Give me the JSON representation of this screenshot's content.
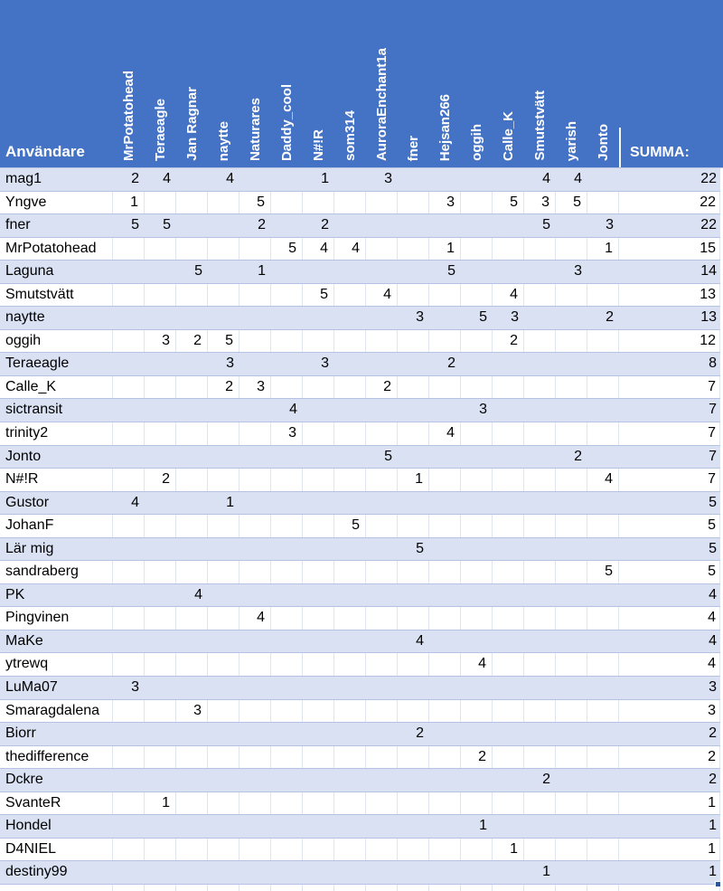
{
  "table": {
    "corner_label": "Användare",
    "summa_label": "SUMMA:",
    "columns": [
      "MrPotatohead",
      "Teraeagle",
      "Jan Ragnar",
      "naytte",
      "Naturares",
      "Daddy_cool",
      "N#!R",
      "som314",
      "AuroraEnchant1a",
      "fner",
      "Hejsan266",
      "oggih",
      "Calle_K",
      "Smutstvätt",
      "yarish",
      "Jonto"
    ],
    "rows": [
      {
        "user": "mag1",
        "cells": [
          "2",
          "4",
          "",
          "4",
          "",
          "",
          "1",
          "",
          "3",
          "",
          "",
          "",
          "",
          "4",
          "4",
          ""
        ],
        "summa": "22"
      },
      {
        "user": "Yngve",
        "cells": [
          "1",
          "",
          "",
          "",
          "5",
          "",
          "",
          "",
          "",
          "",
          "3",
          "",
          "5",
          "3",
          "5",
          ""
        ],
        "summa": "22"
      },
      {
        "user": "fner",
        "cells": [
          "5",
          "5",
          "",
          "",
          "2",
          "",
          "2",
          "",
          "",
          "",
          "",
          "",
          "",
          "5",
          "",
          "3"
        ],
        "summa": "22"
      },
      {
        "user": "MrPotatohead",
        "cells": [
          "",
          "",
          "",
          "",
          "",
          "5",
          "4",
          "4",
          "",
          "",
          "1",
          "",
          "",
          "",
          "",
          "1"
        ],
        "summa": "15"
      },
      {
        "user": "Laguna",
        "cells": [
          "",
          "",
          "5",
          "",
          "1",
          "",
          "",
          "",
          "",
          "",
          "5",
          "",
          "",
          "",
          "3",
          ""
        ],
        "summa": "14"
      },
      {
        "user": "Smutstvätt",
        "cells": [
          "",
          "",
          "",
          "",
          "",
          "",
          "5",
          "",
          "4",
          "",
          "",
          "",
          "4",
          "",
          "",
          ""
        ],
        "summa": "13"
      },
      {
        "user": "naytte",
        "cells": [
          "",
          "",
          "",
          "",
          "",
          "",
          "",
          "",
          "",
          "3",
          "",
          "5",
          "3",
          "",
          "",
          "2"
        ],
        "summa": "13"
      },
      {
        "user": "oggih",
        "cells": [
          "",
          "3",
          "2",
          "5",
          "",
          "",
          "",
          "",
          "",
          "",
          "",
          "",
          "2",
          "",
          "",
          ""
        ],
        "summa": "12"
      },
      {
        "user": "Teraeagle",
        "cells": [
          "",
          "",
          "",
          "3",
          "",
          "",
          "3",
          "",
          "",
          "",
          "2",
          "",
          "",
          "",
          "",
          ""
        ],
        "summa": "8"
      },
      {
        "user": "Calle_K",
        "cells": [
          "",
          "",
          "",
          "2",
          "3",
          "",
          "",
          "",
          "2",
          "",
          "",
          "",
          "",
          "",
          "",
          ""
        ],
        "summa": "7"
      },
      {
        "user": "sictransit",
        "cells": [
          "",
          "",
          "",
          "",
          "",
          "4",
          "",
          "",
          "",
          "",
          "",
          "3",
          "",
          "",
          "",
          ""
        ],
        "summa": "7"
      },
      {
        "user": "trinity2",
        "cells": [
          "",
          "",
          "",
          "",
          "",
          "3",
          "",
          "",
          "",
          "",
          "4",
          "",
          "",
          "",
          "",
          ""
        ],
        "summa": "7"
      },
      {
        "user": "Jonto",
        "cells": [
          "",
          "",
          "",
          "",
          "",
          "",
          "",
          "",
          "5",
          "",
          "",
          "",
          "",
          "",
          "2",
          ""
        ],
        "summa": "7"
      },
      {
        "user": "N#!R",
        "cells": [
          "",
          "2",
          "",
          "",
          "",
          "",
          "",
          "",
          "",
          "1",
          "",
          "",
          "",
          "",
          "",
          "4"
        ],
        "summa": "7"
      },
      {
        "user": "Gustor",
        "cells": [
          "4",
          "",
          "",
          "1",
          "",
          "",
          "",
          "",
          "",
          "",
          "",
          "",
          "",
          "",
          "",
          ""
        ],
        "summa": "5"
      },
      {
        "user": "JohanF",
        "cells": [
          "",
          "",
          "",
          "",
          "",
          "",
          "",
          "5",
          "",
          "",
          "",
          "",
          "",
          "",
          "",
          ""
        ],
        "summa": "5"
      },
      {
        "user": "Lär mig",
        "cells": [
          "",
          "",
          "",
          "",
          "",
          "",
          "",
          "",
          "",
          "5",
          "",
          "",
          "",
          "",
          "",
          ""
        ],
        "summa": "5"
      },
      {
        "user": "sandraberg",
        "cells": [
          "",
          "",
          "",
          "",
          "",
          "",
          "",
          "",
          "",
          "",
          "",
          "",
          "",
          "",
          "",
          "5"
        ],
        "summa": "5"
      },
      {
        "user": "PK",
        "cells": [
          "",
          "",
          "4",
          "",
          "",
          "",
          "",
          "",
          "",
          "",
          "",
          "",
          "",
          "",
          "",
          ""
        ],
        "summa": "4"
      },
      {
        "user": "Pingvinen",
        "cells": [
          "",
          "",
          "",
          "",
          "4",
          "",
          "",
          "",
          "",
          "",
          "",
          "",
          "",
          "",
          "",
          ""
        ],
        "summa": "4"
      },
      {
        "user": "MaKe",
        "cells": [
          "",
          "",
          "",
          "",
          "",
          "",
          "",
          "",
          "",
          "4",
          "",
          "",
          "",
          "",
          "",
          ""
        ],
        "summa": "4"
      },
      {
        "user": "ytrewq",
        "cells": [
          "",
          "",
          "",
          "",
          "",
          "",
          "",
          "",
          "",
          "",
          "",
          "4",
          "",
          "",
          "",
          ""
        ],
        "summa": "4"
      },
      {
        "user": "LuMa07",
        "cells": [
          "3",
          "",
          "",
          "",
          "",
          "",
          "",
          "",
          "",
          "",
          "",
          "",
          "",
          "",
          "",
          ""
        ],
        "summa": "3"
      },
      {
        "user": "Smaragdalena",
        "cells": [
          "",
          "",
          "3",
          "",
          "",
          "",
          "",
          "",
          "",
          "",
          "",
          "",
          "",
          "",
          "",
          ""
        ],
        "summa": "3"
      },
      {
        "user": "Biorr",
        "cells": [
          "",
          "",
          "",
          "",
          "",
          "",
          "",
          "",
          "",
          "2",
          "",
          "",
          "",
          "",
          "",
          ""
        ],
        "summa": "2"
      },
      {
        "user": "thedifference",
        "cells": [
          "",
          "",
          "",
          "",
          "",
          "",
          "",
          "",
          "",
          "",
          "",
          "2",
          "",
          "",
          "",
          ""
        ],
        "summa": "2"
      },
      {
        "user": "Dckre",
        "cells": [
          "",
          "",
          "",
          "",
          "",
          "",
          "",
          "",
          "",
          "",
          "",
          "",
          "",
          "2",
          "",
          ""
        ],
        "summa": "2"
      },
      {
        "user": "SvanteR",
        "cells": [
          "",
          "1",
          "",
          "",
          "",
          "",
          "",
          "",
          "",
          "",
          "",
          "",
          "",
          "",
          "",
          ""
        ],
        "summa": "1"
      },
      {
        "user": "Hondel",
        "cells": [
          "",
          "",
          "",
          "",
          "",
          "",
          "",
          "",
          "",
          "",
          "",
          "1",
          "",
          "",
          "",
          ""
        ],
        "summa": "1"
      },
      {
        "user": "D4NIEL",
        "cells": [
          "",
          "",
          "",
          "",
          "",
          "",
          "",
          "",
          "",
          "",
          "",
          "",
          "1",
          "",
          "",
          ""
        ],
        "summa": "1"
      },
      {
        "user": "destiny99",
        "cells": [
          "",
          "",
          "",
          "",
          "",
          "",
          "",
          "",
          "",
          "",
          "",
          "",
          "",
          "1",
          "",
          ""
        ],
        "summa": "1"
      }
    ]
  },
  "colors": {
    "header_bg": "#4472c4",
    "header_text": "#ffffff",
    "stripe_bg": "#d9e1f2",
    "row_bg": "#ffffff",
    "grid_line": "#b6c2e1",
    "cell_border": "#dfe4ee",
    "text": "#000000",
    "fill_handle": "#2f5597"
  }
}
